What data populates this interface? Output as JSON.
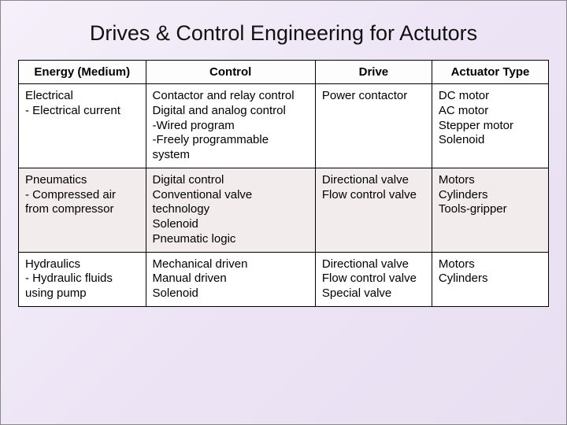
{
  "title": "Drives & Control Engineering for Actutors",
  "table": {
    "columns": [
      "Energy (Medium)",
      "Control",
      "Drive",
      "Actuator Type"
    ],
    "column_widths_pct": [
      24,
      32,
      22,
      22
    ],
    "header_align": "center",
    "cell_align": "left",
    "font_family": "Arial",
    "title_fontsize": 27,
    "header_fontsize": 15,
    "cell_fontsize": 15,
    "border_color": "#000000",
    "row_bg_odd": "#ffffff",
    "row_bg_even": "#f2edec",
    "header_bg": "#fdfdfd",
    "slide_bg_gradient": [
      "#f5f0fa",
      "#ede5f5",
      "#e8dff2"
    ],
    "rows": [
      {
        "energy": "Electrical\n- Electrical current",
        "control": "Contactor and relay control\nDigital and analog control\n-Wired program\n-Freely programmable system",
        "drive": "Power contactor",
        "actuator": "DC motor\nAC motor\nStepper motor\nSolenoid"
      },
      {
        "energy": "Pneumatics\n- Compressed air from compressor",
        "control": "Digital control\nConventional valve technology\nSolenoid\nPneumatic logic",
        "drive": "Directional valve\nFlow control valve",
        "actuator": "Motors\nCylinders\nTools-gripper"
      },
      {
        "energy": "Hydraulics\n- Hydraulic fluids using pump",
        "control": "Mechanical driven\nManual driven\nSolenoid",
        "drive": "Directional valve\nFlow control valve\nSpecial valve",
        "actuator": "Motors\nCylinders"
      }
    ]
  }
}
